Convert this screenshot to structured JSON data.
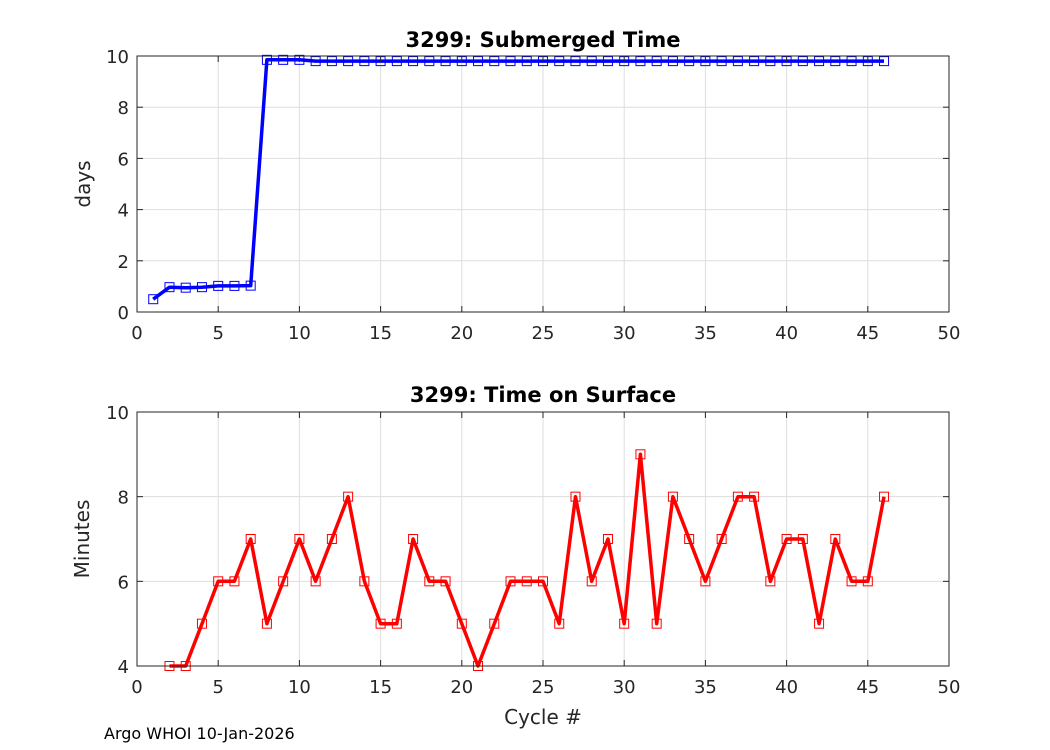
{
  "footer": {
    "text": "Argo WHOI 10-Jan-2026"
  },
  "chart_data": [
    {
      "type": "line",
      "title": "3299: Submerged Time",
      "xlabel": "",
      "ylabel": "days",
      "xlim": [
        0,
        50
      ],
      "ylim": [
        0,
        10
      ],
      "xticks": [
        0,
        5,
        10,
        15,
        20,
        25,
        30,
        35,
        40,
        45,
        50
      ],
      "yticks": [
        0,
        2,
        4,
        6,
        8,
        10
      ],
      "grid": true,
      "color": "#0000ff",
      "marker": "square",
      "x": [
        1,
        2,
        3,
        4,
        5,
        6,
        7,
        8,
        9,
        10,
        11,
        12,
        13,
        14,
        15,
        16,
        17,
        18,
        19,
        20,
        21,
        22,
        23,
        24,
        25,
        26,
        27,
        28,
        29,
        30,
        31,
        32,
        33,
        34,
        35,
        36,
        37,
        38,
        39,
        40,
        41,
        42,
        43,
        44,
        45,
        46
      ],
      "values": [
        0.5,
        0.97,
        0.95,
        0.97,
        1.02,
        1.02,
        1.03,
        9.85,
        9.85,
        9.85,
        9.8,
        9.8,
        9.8,
        9.8,
        9.8,
        9.8,
        9.8,
        9.8,
        9.8,
        9.8,
        9.8,
        9.8,
        9.8,
        9.8,
        9.8,
        9.8,
        9.8,
        9.8,
        9.8,
        9.8,
        9.8,
        9.8,
        9.8,
        9.8,
        9.8,
        9.8,
        9.8,
        9.8,
        9.8,
        9.8,
        9.8,
        9.8,
        9.8,
        9.8,
        9.8,
        9.8
      ]
    },
    {
      "type": "line",
      "title": "3299: Time on Surface",
      "xlabel": "Cycle #",
      "ylabel": "Minutes",
      "xlim": [
        0,
        50
      ],
      "ylim": [
        4,
        10
      ],
      "xticks": [
        0,
        5,
        10,
        15,
        20,
        25,
        30,
        35,
        40,
        45,
        50
      ],
      "yticks": [
        4,
        6,
        8,
        10
      ],
      "grid": true,
      "color": "#ff0000",
      "marker": "square",
      "x": [
        2,
        3,
        4,
        5,
        6,
        7,
        8,
        9,
        10,
        11,
        12,
        13,
        14,
        15,
        16,
        17,
        18,
        19,
        20,
        21,
        22,
        23,
        24,
        25,
        26,
        27,
        28,
        29,
        30,
        31,
        32,
        33,
        34,
        35,
        36,
        37,
        38,
        39,
        40,
        41,
        42,
        43,
        44,
        45,
        46
      ],
      "values": [
        4,
        4,
        5,
        6,
        6,
        7,
        5,
        6,
        7,
        6,
        7,
        8,
        6,
        5,
        5,
        7,
        6,
        6,
        5,
        4,
        5,
        6,
        6,
        6,
        5,
        8,
        6,
        7,
        5,
        9,
        5,
        8,
        7,
        6,
        7,
        8,
        8,
        6,
        7,
        7,
        5,
        7,
        6,
        6,
        8
      ]
    }
  ]
}
